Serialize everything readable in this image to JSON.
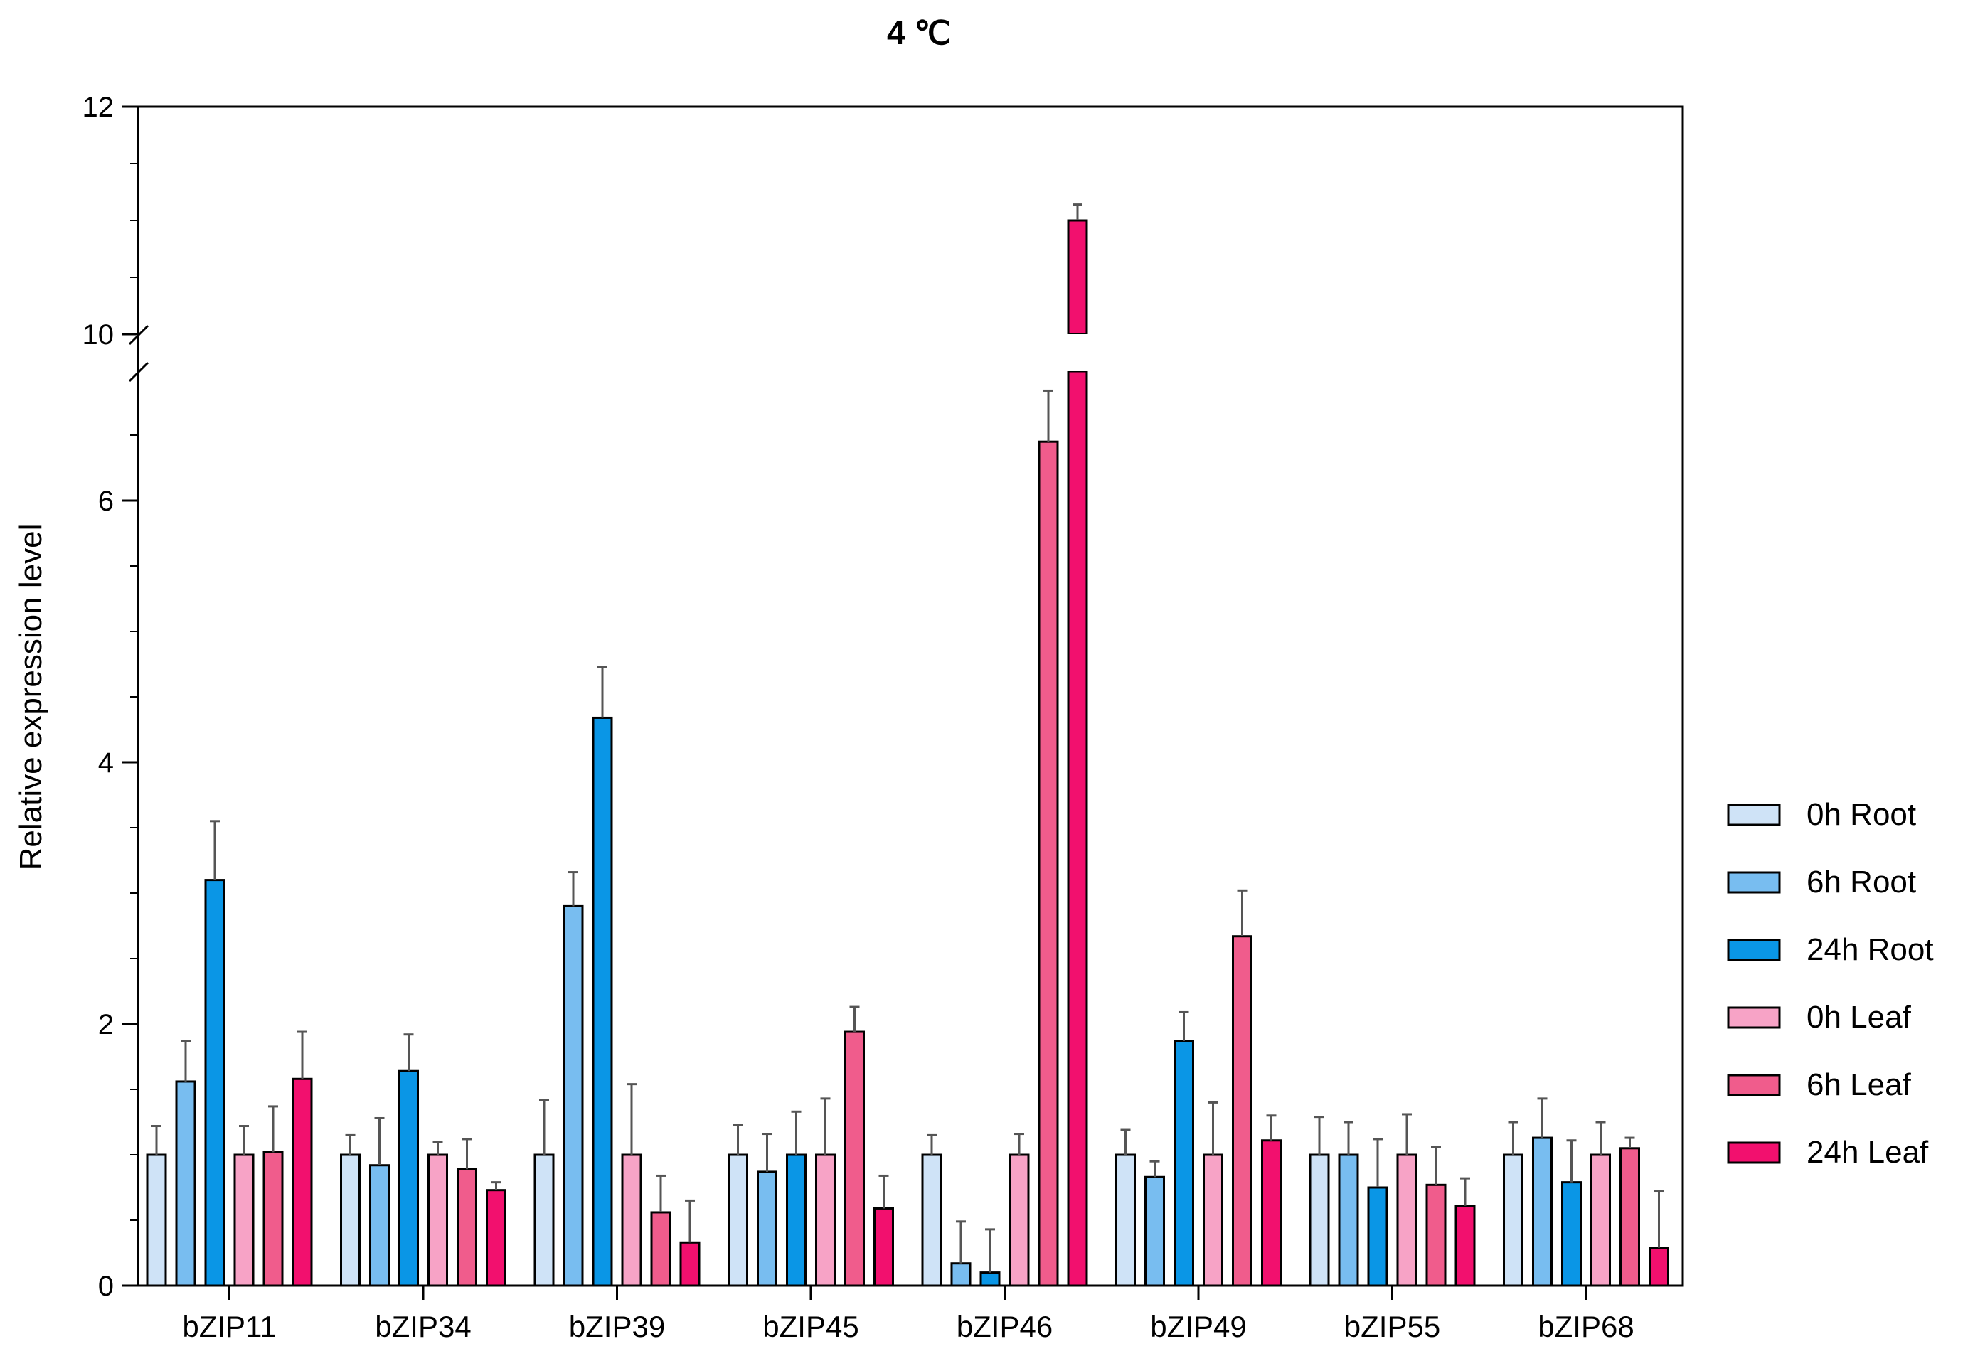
{
  "chart_data": {
    "type": "bar",
    "title": "4 ℃",
    "ylabel": "Relative expression level",
    "xlabel": "",
    "ylim": [
      0,
      12
    ],
    "y_axis_break": [
      7,
      10
    ],
    "yticks": [
      "0",
      "2",
      "4",
      "6",
      "10",
      "12"
    ],
    "categories": [
      "bZIP11",
      "bZIP34",
      "bZIP39",
      "bZIP45",
      "bZIP46",
      "bZIP49",
      "bZIP55",
      "bZIP68"
    ],
    "legend_position": "right",
    "grid": false,
    "series": [
      {
        "name": "0h Root",
        "color": "#cfe3f7",
        "values": [
          1.0,
          1.0,
          1.0,
          1.0,
          1.0,
          1.0,
          1.0,
          1.0
        ],
        "errors": [
          0.22,
          0.15,
          0.42,
          0.23,
          0.15,
          0.19,
          0.29,
          0.25
        ]
      },
      {
        "name": "6h Root",
        "color": "#78bdf0",
        "values": [
          1.56,
          0.92,
          2.9,
          0.87,
          0.17,
          0.83,
          1.0,
          1.13
        ],
        "errors": [
          0.31,
          0.36,
          0.26,
          0.29,
          0.32,
          0.12,
          0.25,
          0.3
        ]
      },
      {
        "name": "24h Root",
        "color": "#0a96e6",
        "values": [
          3.1,
          1.64,
          4.34,
          1.0,
          0.1,
          1.87,
          0.75,
          0.79
        ],
        "errors": [
          0.45,
          0.28,
          0.39,
          0.33,
          0.33,
          0.22,
          0.37,
          0.32
        ]
      },
      {
        "name": "0h Leaf",
        "color": "#f7a3c6",
        "values": [
          1.0,
          1.0,
          1.0,
          1.0,
          1.0,
          1.0,
          1.0,
          1.0
        ],
        "errors": [
          0.22,
          0.1,
          0.54,
          0.43,
          0.16,
          0.4,
          0.31,
          0.25
        ]
      },
      {
        "name": "6h Leaf",
        "color": "#f05c8c",
        "values": [
          1.02,
          0.89,
          0.56,
          1.94,
          6.45,
          2.67,
          0.77,
          1.05
        ],
        "errors": [
          0.35,
          0.23,
          0.28,
          0.19,
          0.39,
          0.35,
          0.29,
          0.08
        ]
      },
      {
        "name": "24h Leaf",
        "color": "#f2106e",
        "values": [
          1.58,
          0.73,
          0.33,
          0.59,
          11.0,
          1.11,
          0.61,
          0.29
        ],
        "errors": [
          0.36,
          0.06,
          0.32,
          0.25,
          0.14,
          0.19,
          0.21,
          0.43
        ]
      }
    ]
  }
}
